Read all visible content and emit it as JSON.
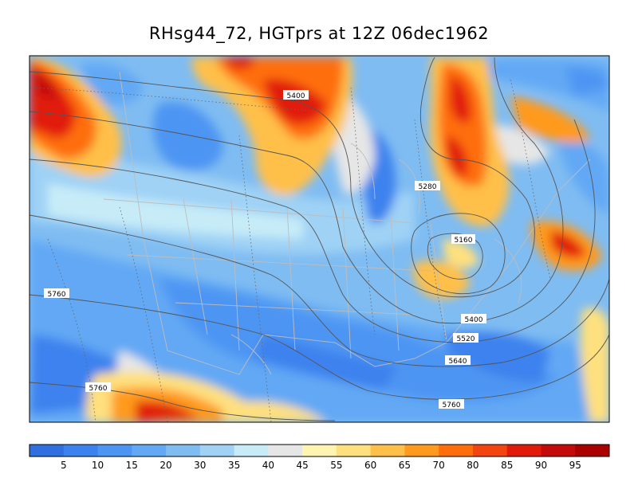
{
  "title": "RHsg44_72, HGTprs at 12Z  06dec1962",
  "contour_labels": [
    "5400",
    "5280",
    "5160",
    "5400",
    "5520",
    "5640",
    "5760",
    "5760",
    "5760"
  ],
  "colorbar": {
    "colors": [
      "#2f6fe0",
      "#3c82ee",
      "#4d95f3",
      "#62a8f4",
      "#7fbcf2",
      "#9fd2f5",
      "#c7ecf8",
      "#e6e6e6",
      "#fff4b0",
      "#ffe07e",
      "#ffc04a",
      "#ff9a1e",
      "#ff6e0a",
      "#f44511",
      "#e11a0a",
      "#c40a0a"
    ],
    "tick_labels": [
      "5",
      "10",
      "15",
      "20",
      "30",
      "35",
      "40",
      "45",
      "55",
      "60",
      "65",
      "70",
      "80",
      "85",
      "90",
      "95"
    ]
  },
  "palette": {
    "background_field": "#7fbcf2",
    "coast": "#bdbdbd",
    "contour": "#555555"
  }
}
